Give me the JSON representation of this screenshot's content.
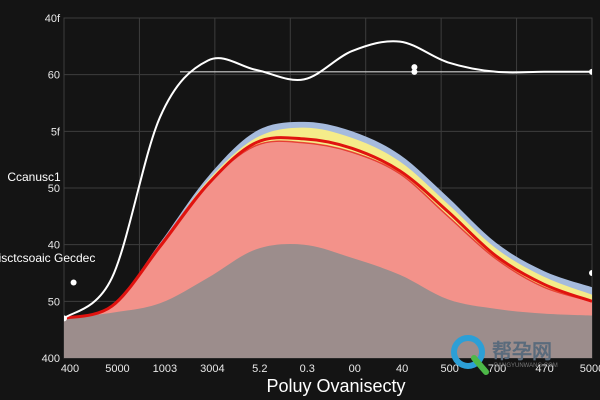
{
  "chart_data": {
    "type": "area",
    "title": "",
    "xlabel": "Poluy Ovanisecty",
    "ylabel_lines": [
      "Ccanusc1",
      "Omeisctcsoaic Gecdec"
    ],
    "x_tick_labels": [
      "400",
      "5000",
      "1003",
      "3004",
      "5.2",
      "0.3",
      "00",
      "40",
      "500",
      "700",
      "470",
      "5000"
    ],
    "y_tick_labels": [
      "400",
      "50",
      "40",
      "50",
      "5f",
      "60",
      "40f"
    ],
    "grid": true,
    "x": [
      0,
      1,
      2,
      3,
      4,
      5,
      6,
      7,
      8,
      9,
      10,
      11
    ],
    "series": [
      {
        "role": "gray-area",
        "values": [
          42,
          48,
          58,
          85,
          115,
          120,
          106,
          88,
          62,
          52,
          47,
          45
        ]
      },
      {
        "role": "salmon-area",
        "values": [
          42,
          55,
          120,
          185,
          225,
          228,
          218,
          195,
          150,
          105,
          75,
          60
        ]
      },
      {
        "role": "blue-band",
        "values": [
          42,
          55,
          122,
          192,
          240,
          250,
          240,
          215,
          170,
          122,
          92,
          75
        ]
      },
      {
        "role": "yellow-band",
        "values": [
          42,
          55,
          120,
          188,
          233,
          244,
          233,
          208,
          163,
          116,
          86,
          67
        ]
      },
      {
        "role": "red-curve",
        "values": [
          42,
          55,
          118,
          184,
          228,
          232,
          222,
          198,
          155,
          108,
          78,
          60
        ]
      },
      {
        "role": "white-curve",
        "values": [
          42,
          85,
          255,
          315,
          305,
          295,
          325,
          335,
          313,
          303,
          303,
          303
        ]
      }
    ],
    "y_range": [
      0,
      360
    ],
    "colors": {
      "background": "#141414",
      "grid": "#3d3d3d",
      "gray": "#8c8c8c",
      "salmon": "#f3928a",
      "blue": "#aec4e8",
      "yellow": "#f5ec8a",
      "red": "#e0130f",
      "white": "#ffffff"
    }
  },
  "watermark": {
    "text": "帮孕网",
    "sub": "BANGYUNWANG.COM"
  }
}
